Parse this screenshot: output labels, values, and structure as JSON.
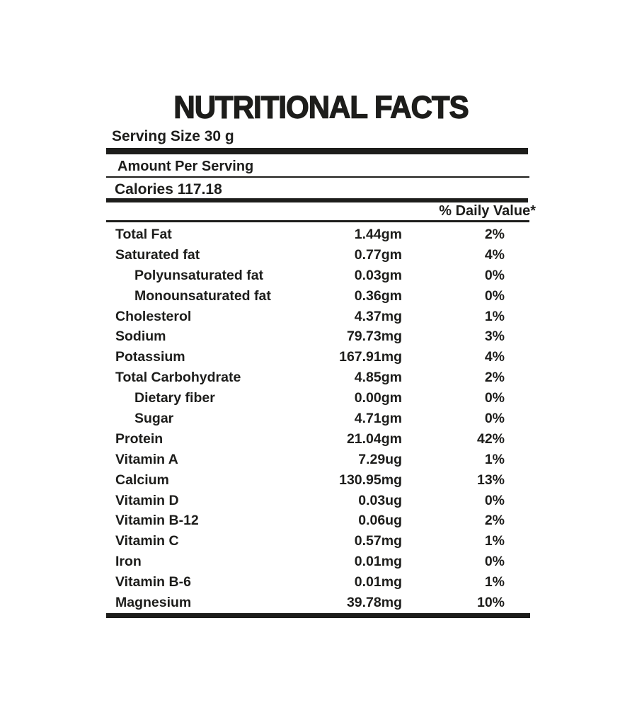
{
  "label": {
    "title": "NUTRITIONAL FACTS",
    "serving_size": "Serving Size 30 g",
    "amount_per_serving": "Amount Per Serving",
    "calories": "Calories 117.18",
    "daily_value_header": "% Daily Value*",
    "colors": {
      "text": "#1d1d1b",
      "background": "#ffffff"
    },
    "rows": [
      {
        "name": "Total Fat",
        "amount": "1.44gm",
        "daily_value": "2%",
        "indent": false
      },
      {
        "name": "Saturated fat",
        "amount": "0.77gm",
        "daily_value": "4%",
        "indent": false
      },
      {
        "name": "Polyunsaturated fat",
        "amount": "0.03gm",
        "daily_value": "0%",
        "indent": true
      },
      {
        "name": "Monounsaturated fat",
        "amount": "0.36gm",
        "daily_value": "0%",
        "indent": true
      },
      {
        "name": "Cholesterol",
        "amount": "4.37mg",
        "daily_value": "1%",
        "indent": false
      },
      {
        "name": "Sodium",
        "amount": "79.73mg",
        "daily_value": "3%",
        "indent": false
      },
      {
        "name": "Potassium",
        "amount": "167.91mg",
        "daily_value": "4%",
        "indent": false
      },
      {
        "name": "Total Carbohydrate",
        "amount": "4.85gm",
        "daily_value": "2%",
        "indent": false
      },
      {
        "name": "Dietary fiber",
        "amount": "0.00gm",
        "daily_value": "0%",
        "indent": true
      },
      {
        "name": "Sugar",
        "amount": "4.71gm",
        "daily_value": "0%",
        "indent": true
      },
      {
        "name": "Protein",
        "amount": "21.04gm",
        "daily_value": "42%",
        "indent": false
      },
      {
        "name": "Vitamin A",
        "amount": "7.29ug",
        "daily_value": "1%",
        "indent": false
      },
      {
        "name": "Calcium",
        "amount": "130.95mg",
        "daily_value": "13%",
        "indent": false
      },
      {
        "name": "Vitamin D",
        "amount": "0.03ug",
        "daily_value": "0%",
        "indent": false
      },
      {
        "name": "Vitamin B-12",
        "amount": "0.06ug",
        "daily_value": "2%",
        "indent": false
      },
      {
        "name": "Vitamin C",
        "amount": "0.57mg",
        "daily_value": "1%",
        "indent": false
      },
      {
        "name": "Iron",
        "amount": "0.01mg",
        "daily_value": "0%",
        "indent": false
      },
      {
        "name": "Vitamin B-6",
        "amount": "0.01mg",
        "daily_value": "1%",
        "indent": false
      },
      {
        "name": "Magnesium",
        "amount": "39.78mg",
        "daily_value": "10%",
        "indent": false
      }
    ]
  }
}
